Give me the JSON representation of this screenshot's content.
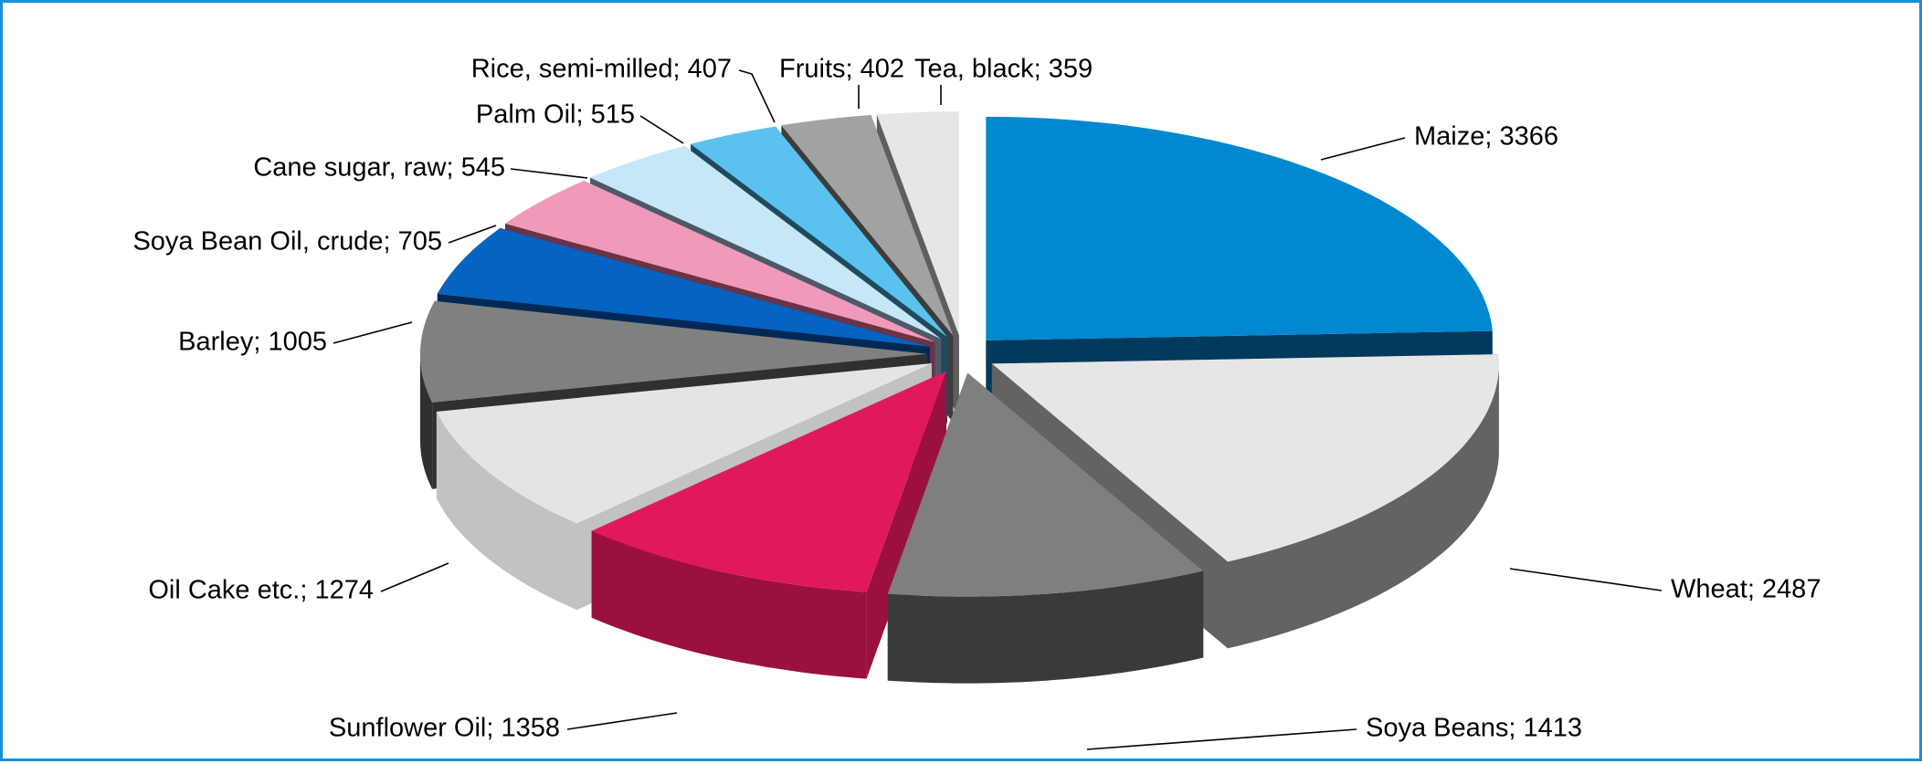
{
  "chart_data": {
    "type": "pie",
    "style": "exploded-3d",
    "title": "",
    "legend": "none",
    "label_format": "{category}; {value}",
    "slices": [
      {
        "category": "Maize",
        "value": 3366,
        "color": "#0288d1",
        "side_color": "#003a5c"
      },
      {
        "category": "Wheat",
        "value": 2487,
        "color": "#e6e6e6",
        "side_color": "#636363"
      },
      {
        "category": "Soya Beans",
        "value": 1413,
        "color": "#7f7f7f",
        "side_color": "#3a3a3a"
      },
      {
        "category": "Sunflower Oil",
        "value": 1358,
        "color": "#e0195f",
        "side_color": "#9c1040"
      },
      {
        "category": "Oil Cake etc.",
        "value": 1274,
        "color": "#e4e4e4",
        "side_color": "#c2c2c2"
      },
      {
        "category": "Barley",
        "value": 1005,
        "color": "#808080",
        "side_color": "#303030"
      },
      {
        "category": "Soya Bean Oil, crude",
        "value": 705,
        "color": "#0563c1",
        "side_color": "#002a55"
      },
      {
        "category": "Cane sugar, raw",
        "value": 545,
        "color": "#f09abb",
        "side_color": "#6b3344"
      },
      {
        "category": "Palm Oil",
        "value": 515,
        "color": "#c7e6f8",
        "side_color": "#4c5a66"
      },
      {
        "category": "Rice, semi-milled",
        "value": 407,
        "color": "#5bc2ef",
        "side_color": "#1f4a5e"
      },
      {
        "category": "Fruits",
        "value": 402,
        "color": "#a2a2a2",
        "side_color": "#3c3c3c"
      },
      {
        "category": "Tea, black",
        "value": 359,
        "color": "#e6e6e6",
        "side_color": "#5e5e5e"
      }
    ]
  }
}
